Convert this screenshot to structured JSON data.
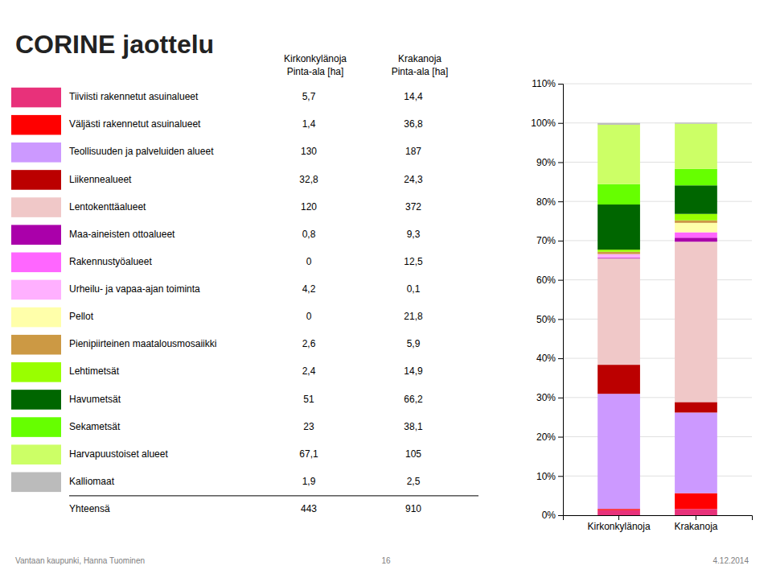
{
  "chart_data": {
    "type": "bar",
    "title": "CORINE jaottelu",
    "stacked": true,
    "grid": true,
    "categories": [
      "Kirkonkylänoja",
      "Krakanoja"
    ],
    "ylim": [
      0,
      110
    ],
    "yticks": [
      {
        "value": 0,
        "label": "0%"
      },
      {
        "value": 10,
        "label": "10%"
      },
      {
        "value": 20,
        "label": "20%"
      },
      {
        "value": 30,
        "label": "30%"
      },
      {
        "value": 40,
        "label": "40%"
      },
      {
        "value": 50,
        "label": "50%"
      },
      {
        "value": 60,
        "label": "60%"
      },
      {
        "value": 70,
        "label": "70%"
      },
      {
        "value": 80,
        "label": "80%"
      },
      {
        "value": 90,
        "label": "90%"
      },
      {
        "value": 100,
        "label": "100%"
      },
      {
        "value": 110,
        "label": "110%"
      }
    ],
    "series": [
      {
        "name": "Tiiviisti rakennetut asuinalueet",
        "color": "#E8317A",
        "values": [
          1.286682,
          1.582418
        ],
        "area_ha": [
          5.7,
          14.4
        ],
        "area_labels": [
          "5,7",
          "14,4"
        ]
      },
      {
        "name": "Väljästi rakennetut asuinalueet",
        "color": "#FF0000",
        "values": [
          0.316027,
          4.043956
        ],
        "area_ha": [
          1.4,
          36.8
        ],
        "area_labels": [
          "1,4",
          "36,8"
        ]
      },
      {
        "name": "Teollisuuden ja palveluiden alueet",
        "color": "#CC99FF",
        "values": [
          29.345372,
          20.549451
        ],
        "area_ha": [
          130.0,
          187.0
        ],
        "area_labels": [
          "130",
          "187"
        ]
      },
      {
        "name": "Liikennealueet",
        "color": "#BB0000",
        "values": [
          7.404063,
          2.67033
        ],
        "area_ha": [
          32.8,
          24.3
        ],
        "area_labels": [
          "32,8",
          "24,3"
        ]
      },
      {
        "name": "Lentokenttäalueet",
        "color": "#F0C8C8",
        "values": [
          27.088036,
          40.879121
        ],
        "area_ha": [
          120.0,
          372.0
        ],
        "area_labels": [
          "120",
          "372"
        ]
      },
      {
        "name": "Maa-aineisten ottoalueet",
        "color": "#AA00AA",
        "values": [
          0.180587,
          1.021978
        ],
        "area_ha": [
          0.8,
          9.3
        ],
        "area_labels": [
          "0,8",
          "9,3"
        ]
      },
      {
        "name": "Rakennustyöalueet",
        "color": "#FF66FF",
        "values": [
          0,
          1.373626
        ],
        "area_ha": [
          0.0,
          12.5
        ],
        "area_labels": [
          "0",
          "12,5"
        ]
      },
      {
        "name": "Urheilu- ja vapaa-ajan toiminta",
        "color": "#FFB0FF",
        "values": [
          0.948081,
          0.010989
        ],
        "area_ha": [
          4.2,
          0.1
        ],
        "area_labels": [
          "4,2",
          "0,1"
        ]
      },
      {
        "name": "Pellot",
        "color": "#FFFFAA",
        "values": [
          0,
          2.395604
        ],
        "area_ha": [
          0.0,
          21.8
        ],
        "area_labels": [
          "0",
          "21,8"
        ]
      },
      {
        "name": "Pienipiirteinen maatalousmosaiikki",
        "color": "#CC9944",
        "values": [
          0.586907,
          0.648352
        ],
        "area_ha": [
          2.6,
          5.9
        ],
        "area_labels": [
          "2,6",
          "5,9"
        ]
      },
      {
        "name": "Lehtimetsät",
        "color": "#99FF00",
        "values": [
          0.541761,
          1.637363
        ],
        "area_ha": [
          2.4,
          14.9
        ],
        "area_labels": [
          "2,4",
          "14,9"
        ]
      },
      {
        "name": "Havumetsät",
        "color": "#006600",
        "values": [
          11.512415,
          7.274725
        ],
        "area_ha": [
          51.0,
          66.2
        ],
        "area_labels": [
          "51",
          "66,2"
        ]
      },
      {
        "name": "Sekametsät",
        "color": "#66FF00",
        "values": [
          5.191874,
          4.186813
        ],
        "area_ha": [
          23.0,
          38.1
        ],
        "area_labels": [
          "23",
          "38,1"
        ]
      },
      {
        "name": "Harvapuustoiset alueet",
        "color": "#CCFF66",
        "values": [
          15.146727,
          11.538462
        ],
        "area_ha": [
          67.1,
          105.0
        ],
        "area_labels": [
          "67,1",
          "105"
        ]
      },
      {
        "name": "Kalliomaat",
        "color": "#BBBBBB",
        "values": [
          0.428894,
          0.274725
        ],
        "area_ha": [
          1.9,
          2.5
        ],
        "area_labels": [
          "1,9",
          "2,5"
        ]
      }
    ],
    "table_unit": "Pinta-ala [ha]",
    "total_label": "Yhteensä",
    "totals": [
      443,
      910
    ],
    "footer": [
      "Vantaan kaupunki, Hanna Tuominen",
      "16",
      "4.12.2014"
    ]
  }
}
